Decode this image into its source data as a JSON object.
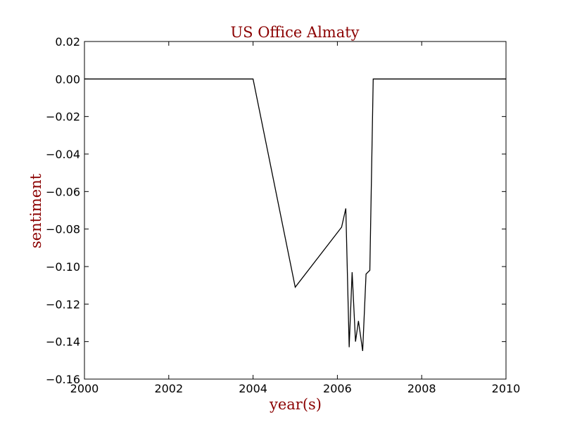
{
  "chart_data": {
    "type": "line",
    "title": "US Office Almaty",
    "xlabel": "year(s)",
    "ylabel": "sentiment",
    "xlim": [
      2000,
      2010
    ],
    "ylim": [
      -0.16,
      0.02
    ],
    "xticks": [
      2000,
      2002,
      2004,
      2006,
      2008,
      2010
    ],
    "xtick_labels": [
      "2000",
      "2002",
      "2004",
      "2006",
      "2008",
      "2010"
    ],
    "yticks": [
      0.02,
      0.0,
      -0.02,
      -0.04,
      -0.06,
      -0.08,
      -0.1,
      -0.12,
      -0.14,
      -0.16
    ],
    "ytick_labels": [
      "0.02",
      "0.00",
      "−0.02",
      "−0.04",
      "−0.06",
      "−0.08",
      "−0.10",
      "−0.12",
      "−0.14",
      "−0.16"
    ],
    "grid": false,
    "series": [
      {
        "x": [
          2000.0,
          2004.0,
          2005.0,
          2006.1,
          2006.2,
          2006.28,
          2006.35,
          2006.43,
          2006.5,
          2006.6,
          2006.68,
          2006.77,
          2006.85,
          2009.9,
          2010.0
        ],
        "y": [
          0.0,
          0.0,
          -0.111,
          -0.079,
          -0.069,
          -0.143,
          -0.103,
          -0.14,
          -0.129,
          -0.145,
          -0.104,
          -0.102,
          0.0,
          0.0,
          0.0
        ]
      }
    ],
    "colors": {
      "line": "#000000",
      "title": "#8b0000",
      "axis_label": "#8b0000",
      "axes": "#000000"
    }
  }
}
